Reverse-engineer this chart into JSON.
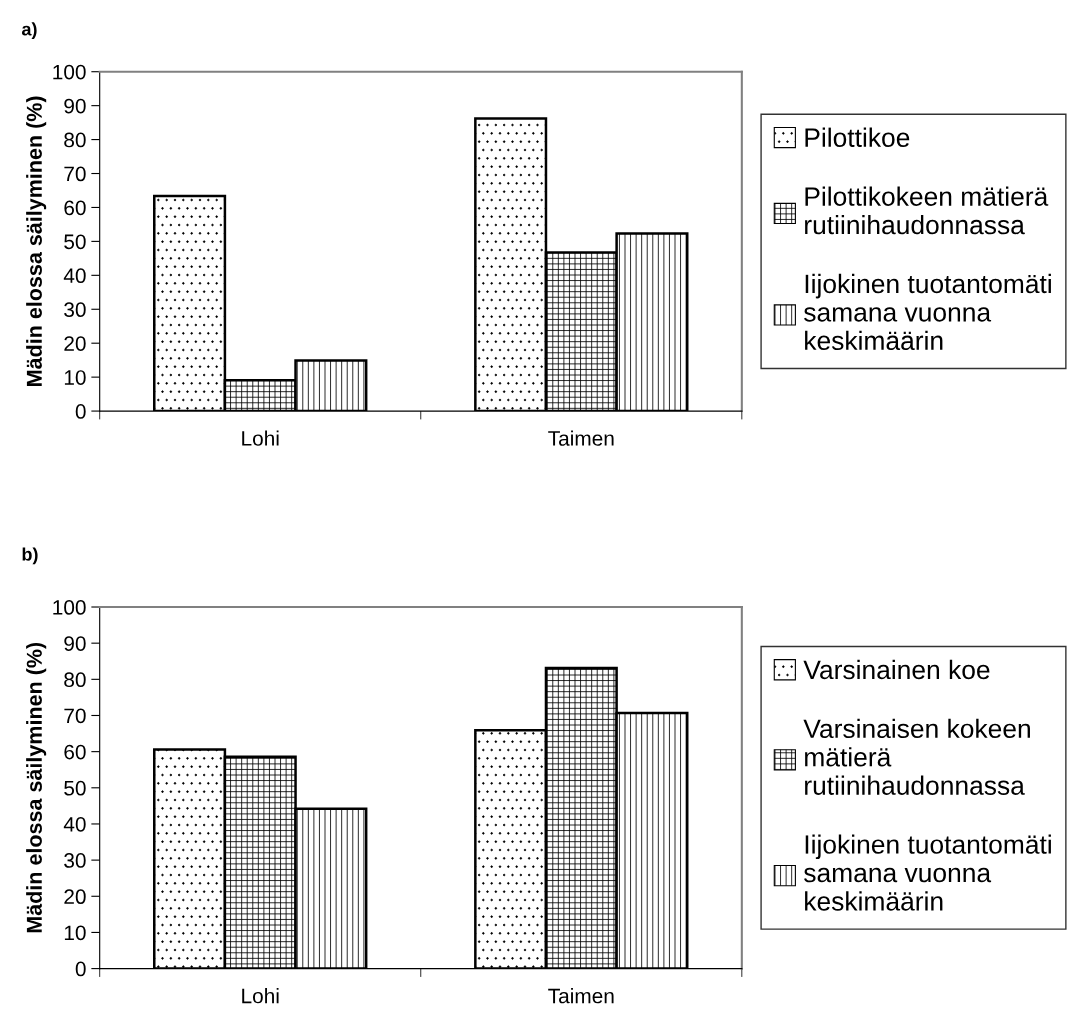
{
  "chart_data": [
    {
      "type": "bar",
      "title": "a)",
      "ylabel": "Mädin elossa säilyminen (%)",
      "categories": [
        "Lohi",
        "Taimen"
      ],
      "ylim": [
        0,
        100
      ],
      "yticks": [
        0,
        10,
        20,
        30,
        40,
        50,
        60,
        70,
        80,
        90,
        100
      ],
      "legend": "right",
      "grid": false,
      "series": [
        {
          "name": "Pilottikoe",
          "color": "#000000",
          "values": [
            63.4,
            86.2
          ]
        },
        {
          "name": "Pilottikokeen mätierä rutiinihaudonnassa",
          "color": "#000000",
          "values": [
            9.1,
            46.7
          ]
        },
        {
          "name": "Iijokinen tuotantomäti samana vuonna keskimäärin",
          "color": "#000000",
          "values": [
            14.9,
            52.3
          ]
        }
      ]
    },
    {
      "type": "bar",
      "title": "b)",
      "ylabel": "Mädin elossa säilyminen (%)",
      "categories": [
        "Lohi",
        "Taimen"
      ],
      "ylim": [
        0,
        100
      ],
      "yticks": [
        0,
        10,
        20,
        30,
        40,
        50,
        60,
        70,
        80,
        90,
        100
      ],
      "legend": "right",
      "grid": false,
      "series": [
        {
          "name": "Varsinainen koe",
          "color": "#000000",
          "values": [
            60.6,
            65.9
          ]
        },
        {
          "name": "Varsinaisen kokeen mätierä rutiinihaudonnassa",
          "color": "#000000",
          "values": [
            58.6,
            83.1
          ]
        },
        {
          "name": "Iijokinen tuotantomäti samana vuonna keskimäärin",
          "color": "#000000",
          "values": [
            44.2,
            70.7
          ]
        }
      ]
    }
  ]
}
